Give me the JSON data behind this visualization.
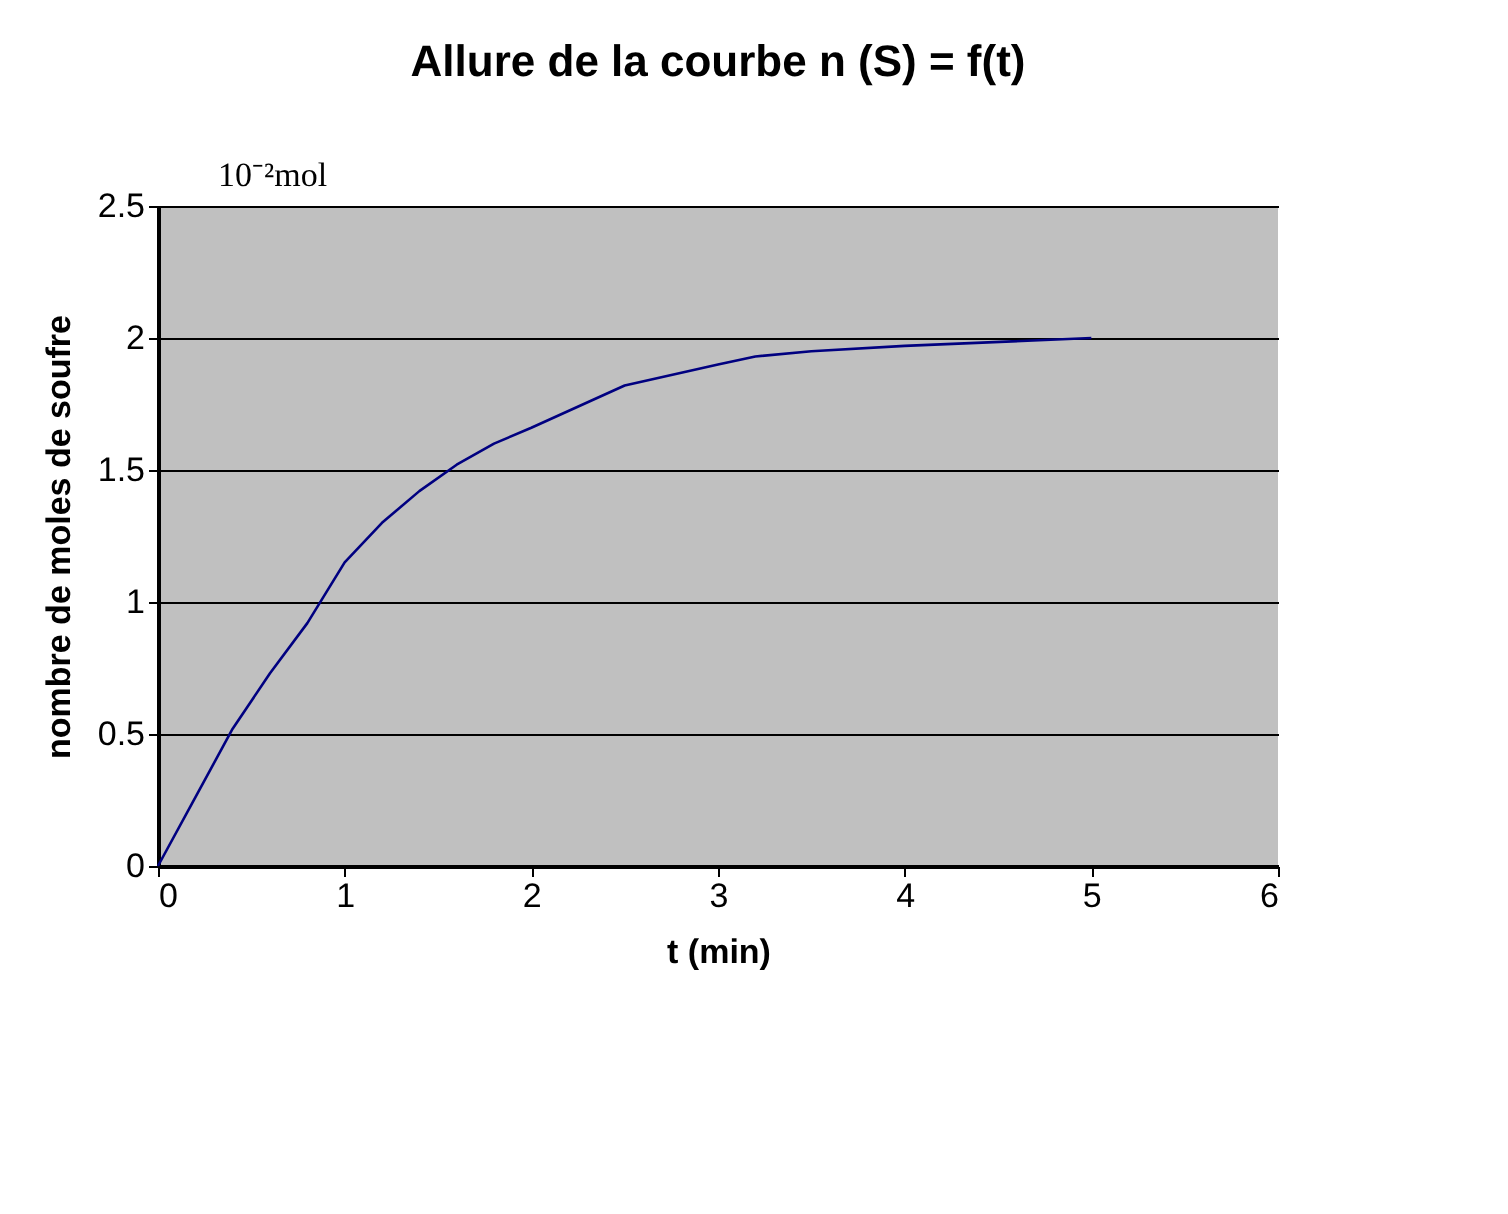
{
  "chart_data": {
    "type": "line",
    "title": "Allure de la courbe n (S) = f(t)",
    "xlabel": "t (min)",
    "ylabel": "nombre de moles de soufre",
    "annotations": [
      "10⁻²mol"
    ],
    "series": [
      {
        "color": "#000080",
        "x": [
          0,
          0.2,
          0.4,
          0.6,
          0.8,
          1.0,
          1.2,
          1.4,
          1.6,
          1.8,
          2.0,
          2.5,
          3.0,
          3.2,
          3.5,
          4.0,
          5.0
        ],
        "values": [
          0,
          0.26,
          0.52,
          0.73,
          0.92,
          1.15,
          1.3,
          1.42,
          1.52,
          1.6,
          1.66,
          1.82,
          1.9,
          1.93,
          1.95,
          1.97,
          2.0
        ]
      }
    ],
    "xlim": [
      0,
      6
    ],
    "xticks": [
      0,
      1,
      2,
      3,
      4,
      5,
      6
    ],
    "ylim": [
      0,
      2.5
    ],
    "yticks": [
      0,
      0.5,
      1,
      1.5,
      2,
      2.5
    ],
    "grid": "y",
    "marker": "none",
    "line_style": "solid"
  }
}
